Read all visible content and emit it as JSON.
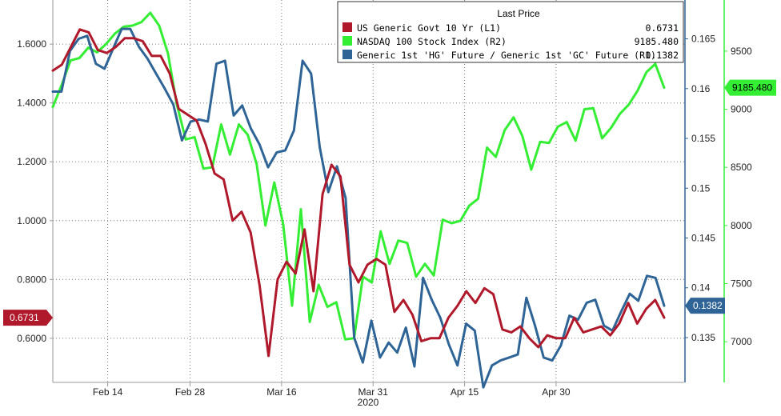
{
  "chart_data": {
    "type": "line",
    "x_axis": {
      "year_label": "2020",
      "ticks": [
        {
          "label": "Feb 14",
          "i": 6
        },
        {
          "label": "Feb 28",
          "i": 15
        },
        {
          "label": "Mar 16",
          "i": 25
        },
        {
          "label": "Mar 31",
          "i": 35
        },
        {
          "label": "Apr 15",
          "i": 45
        },
        {
          "label": "Apr 30",
          "i": 55
        }
      ]
    },
    "left_axis": {
      "range": [
        0.45,
        1.75
      ],
      "ticks": [
        {
          "value": 0.6,
          "label": "0.6000"
        },
        {
          "value": 0.8,
          "label": "0.8000"
        },
        {
          "value": 1.0,
          "label": "1.0000"
        },
        {
          "value": 1.2,
          "label": "1.2000"
        },
        {
          "value": 1.4,
          "label": "1.4000"
        },
        {
          "value": 1.6,
          "label": "1.6000"
        }
      ]
    },
    "right1_axis": {
      "range": [
        0.1305,
        0.1689
      ],
      "ticks": [
        {
          "value": 0.135,
          "label": "0.135"
        },
        {
          "value": 0.14,
          "label": "0.14"
        },
        {
          "value": 0.145,
          "label": "0.145"
        },
        {
          "value": 0.15,
          "label": "0.15"
        },
        {
          "value": 0.155,
          "label": "0.155"
        },
        {
          "value": 0.16,
          "label": "0.16"
        },
        {
          "value": 0.165,
          "label": "0.165"
        }
      ]
    },
    "right2_axis": {
      "range": [
        6650,
        9940
      ],
      "ticks": [
        {
          "value": 7000,
          "label": "7000"
        },
        {
          "value": 7500,
          "label": "7500"
        },
        {
          "value": 8000,
          "label": "8000"
        },
        {
          "value": 8500,
          "label": "8500"
        },
        {
          "value": 9000,
          "label": "9000"
        },
        {
          "value": 9500,
          "label": "9500"
        }
      ]
    },
    "legend": {
      "title": "Last Price",
      "placement": "top-right",
      "entries": [
        {
          "name": "US Generic Govt 10 Yr  (L1)",
          "value": "0.6731",
          "color": "#b0192b"
        },
        {
          "name": "NASDAQ 100 Stock Index  (R2)",
          "value": "9185.480",
          "color": "#33ee33"
        },
        {
          "name": "Generic 1st 'HG' Future / Generic 1st 'GC' Future  (R1)",
          "value": "0.1382",
          "color": "#2f6496"
        }
      ]
    },
    "last_value_labels": {
      "left": "0.6731",
      "right1": "0.1382",
      "right2": "9185.480"
    },
    "series": [
      {
        "name": "US Generic Govt 10 Yr",
        "axis": "left",
        "color": "#b0192b",
        "values": [
          1.51,
          1.53,
          1.59,
          1.65,
          1.64,
          1.58,
          1.57,
          1.59,
          1.62,
          1.62,
          1.61,
          1.56,
          1.56,
          1.5,
          1.38,
          1.36,
          1.34,
          1.26,
          1.16,
          1.14,
          1.0,
          1.03,
          0.96,
          0.78,
          0.54,
          0.8,
          0.86,
          0.82,
          0.97,
          0.76,
          1.09,
          1.19,
          1.15,
          0.85,
          0.79,
          0.85,
          0.87,
          0.85,
          0.69,
          0.73,
          0.68,
          0.59,
          0.6,
          0.6,
          0.67,
          0.71,
          0.76,
          0.72,
          0.77,
          0.75,
          0.63,
          0.62,
          0.64,
          0.6,
          0.57,
          0.61,
          0.6,
          0.6,
          0.67,
          0.62,
          0.63,
          0.64,
          0.61,
          0.65,
          0.72,
          0.65,
          0.7,
          0.73,
          0.67
        ]
      },
      {
        "name": "NASDAQ 100 Stock Index",
        "axis": "right2",
        "color": "#33ee33",
        "values": [
          9020,
          9210,
          9420,
          9440,
          9530,
          9490,
          9560,
          9650,
          9710,
          9720,
          9750,
          9830,
          9720,
          9480,
          9040,
          8740,
          8760,
          8490,
          8500,
          8870,
          8610,
          8870,
          8780,
          8530,
          8000,
          8370,
          8010,
          7310,
          8140,
          7170,
          7490,
          7300,
          7340,
          7020,
          7030,
          7560,
          7510,
          7950,
          7670,
          7870,
          7850,
          7560,
          7670,
          7570,
          8050,
          8020,
          8040,
          8170,
          8230,
          8670,
          8590,
          8820,
          8930,
          8770,
          8480,
          8720,
          8710,
          8850,
          8890,
          8730,
          9000,
          9010,
          8750,
          8840,
          8960,
          9040,
          9160,
          9320,
          9390,
          9185.48
        ]
      },
      {
        "name": "Generic 1st 'HG' Future / Generic 1st 'GC' Future",
        "axis": "right1",
        "color": "#2f6496",
        "values": [
          0.1597,
          0.1597,
          0.1638,
          0.165,
          0.1653,
          0.1625,
          0.162,
          0.164,
          0.166,
          0.166,
          0.1642,
          0.163,
          0.1615,
          0.16,
          0.1584,
          0.1548,
          0.1567,
          0.1569,
          0.1567,
          0.1625,
          0.1628,
          0.1573,
          0.1583,
          0.156,
          0.1544,
          0.1521,
          0.1536,
          0.1538,
          0.1558,
          0.1628,
          0.1615,
          0.1541,
          0.1496,
          0.1522,
          0.149,
          0.135,
          0.1325,
          0.1367,
          0.133,
          0.1345,
          0.1335,
          0.136,
          0.1321,
          0.141,
          0.1388,
          0.137,
          0.1343,
          0.1322,
          0.1364,
          0.1357,
          0.13,
          0.1322,
          0.1327,
          0.133,
          0.1333,
          0.139,
          0.1362,
          0.133,
          0.1327,
          0.1342,
          0.1372,
          0.1368,
          0.1385,
          0.1388,
          0.1362,
          0.1357,
          0.1376,
          0.1394,
          0.1387,
          0.1412,
          0.141,
          0.1382
        ]
      }
    ]
  }
}
